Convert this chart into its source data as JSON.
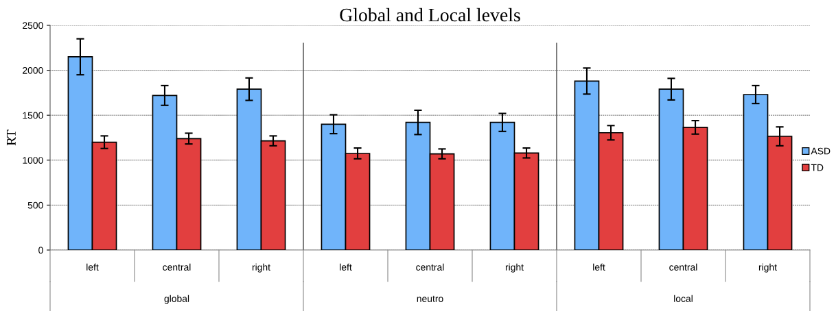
{
  "chart_data": {
    "type": "bar",
    "title": "Global and Local levels",
    "ylabel": "RT",
    "categories": [
      "left",
      "central",
      "right",
      "left",
      "central",
      "right",
      "left",
      "central",
      "right"
    ],
    "series": [
      {
        "name": "ASD",
        "color": "#70b4fa",
        "values": [
          2150,
          1720,
          1790,
          1400,
          1420,
          1420,
          1880,
          1790,
          1730
        ],
        "errors": [
          200,
          110,
          125,
          105,
          135,
          100,
          145,
          120,
          100
        ]
      },
      {
        "name": "TD",
        "color": "#e23f3f",
        "values": [
          1200,
          1240,
          1215,
          1075,
          1070,
          1080,
          1305,
          1365,
          1265
        ],
        "errors": [
          70,
          60,
          55,
          60,
          55,
          55,
          80,
          75,
          105
        ]
      }
    ],
    "annotations": [
      "global",
      "neutro",
      "local"
    ],
    "ylim": [
      0,
      2500
    ],
    "yticks": [
      0,
      500,
      1000,
      1500,
      2000,
      2500
    ],
    "grid": "y",
    "legend": "right"
  }
}
